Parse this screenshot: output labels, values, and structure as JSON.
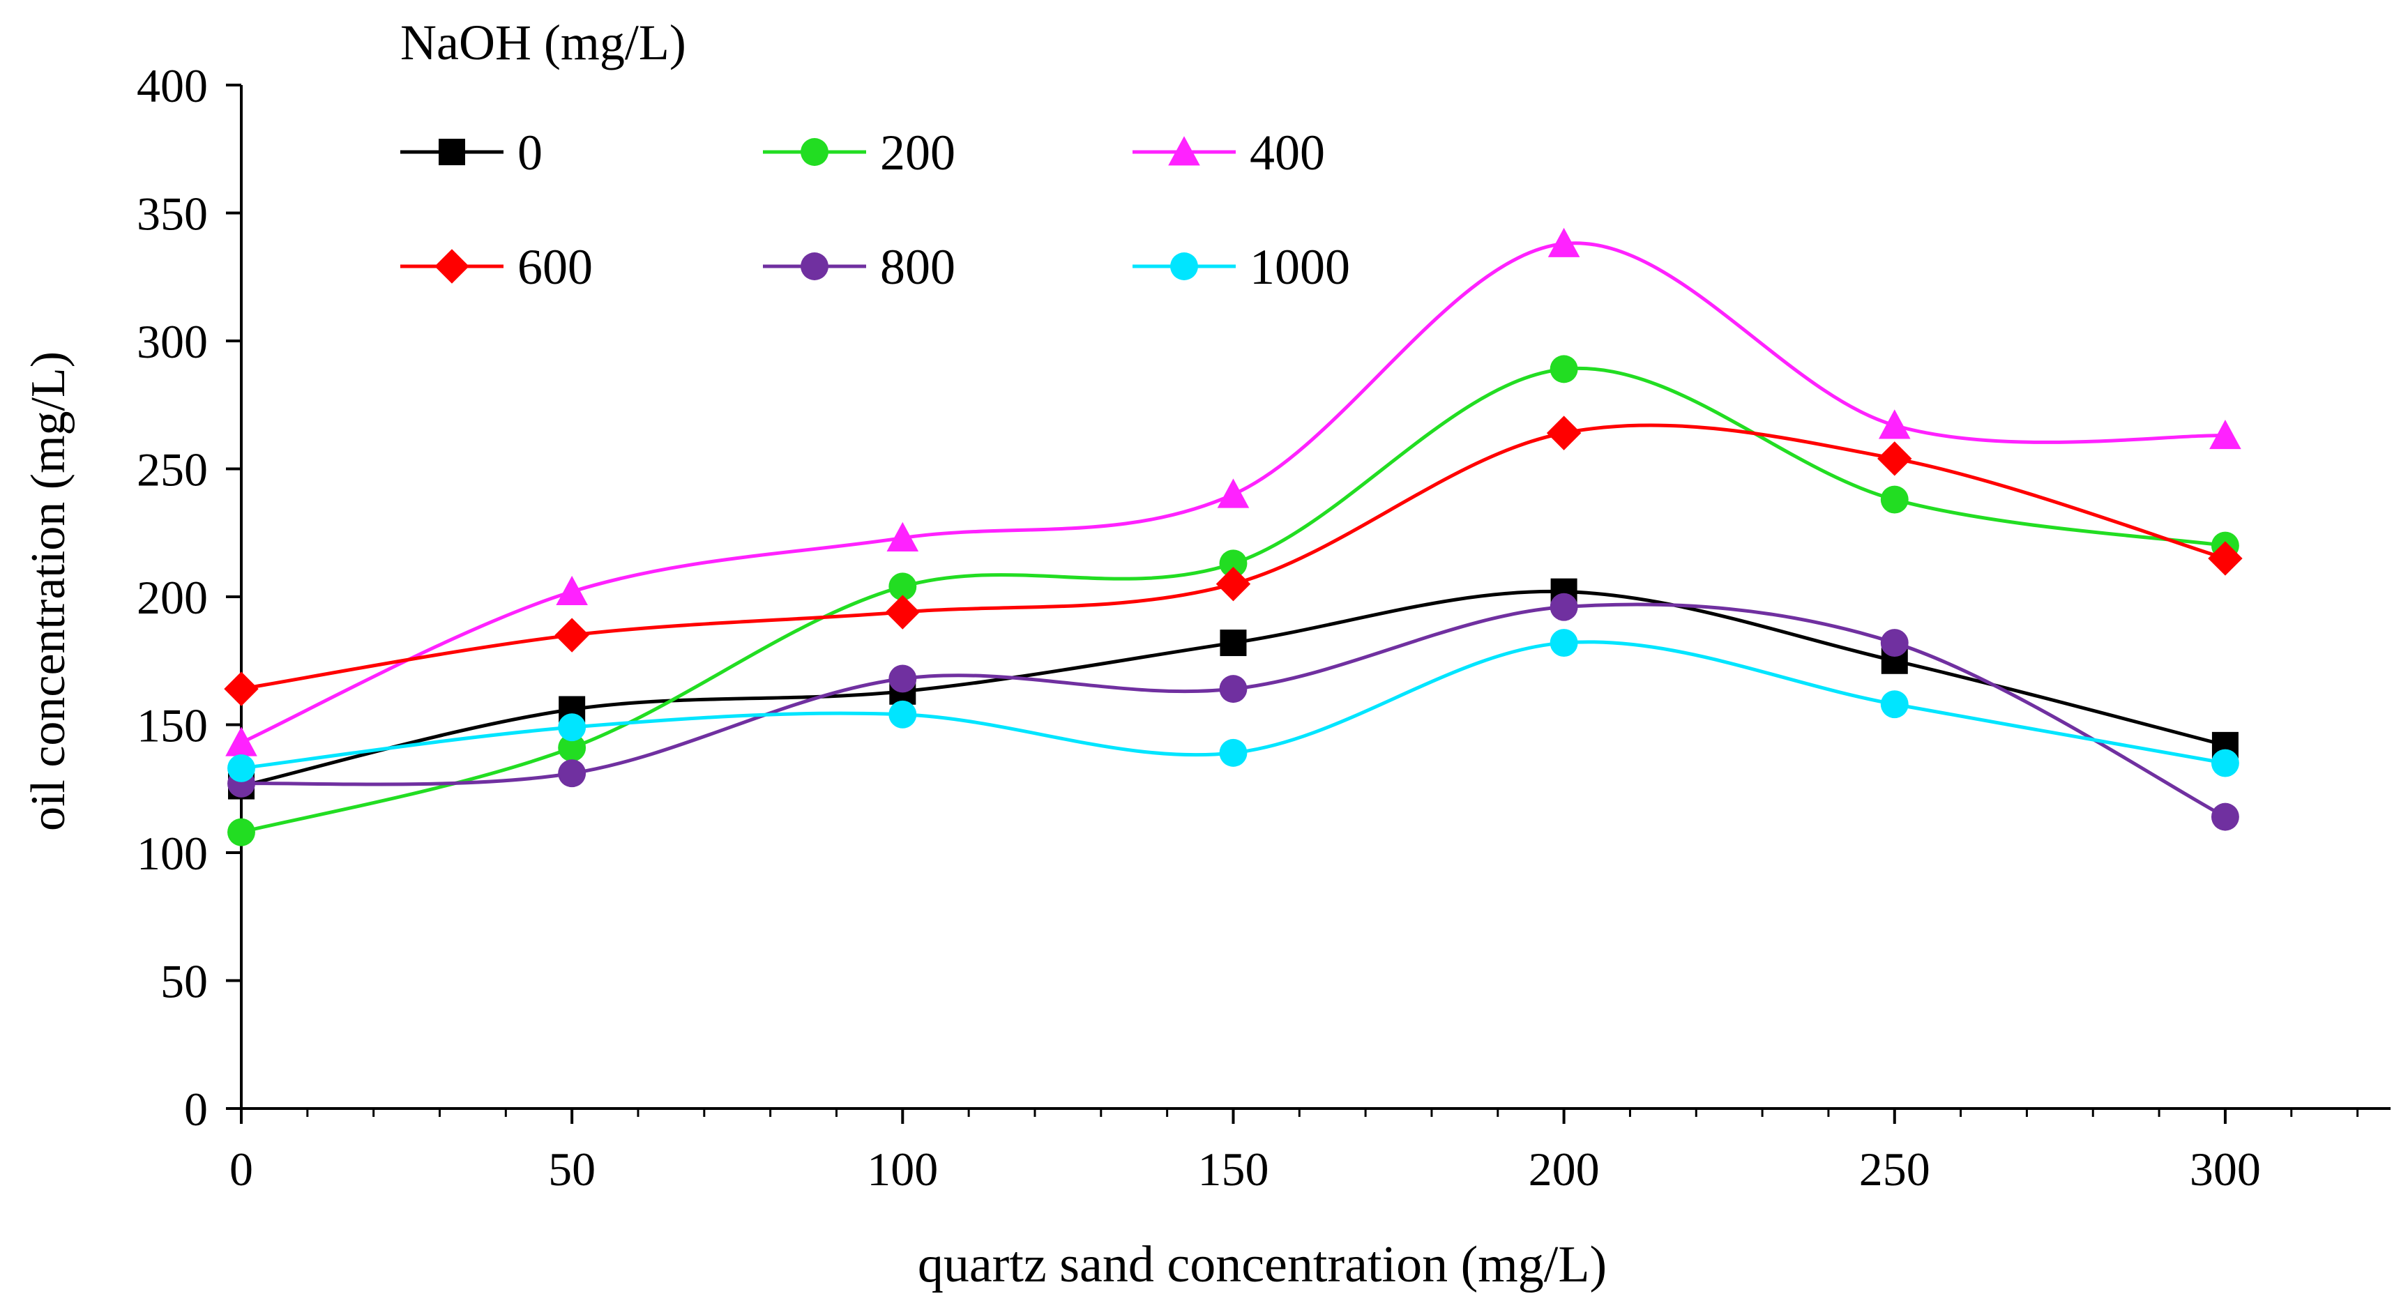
{
  "chart_data": {
    "type": "line",
    "title": "",
    "xlabel": "quartz sand concentration (mg/L)",
    "ylabel": "oil concentration (mg/L)",
    "xlim": [
      0,
      325
    ],
    "ylim": [
      0,
      400
    ],
    "x_ticks": [
      0,
      50,
      100,
      150,
      200,
      250,
      300
    ],
    "x_tick_labels": [
      "0",
      "50",
      "100",
      "150",
      "200",
      "250",
      "300"
    ],
    "y_ticks": [
      0,
      50,
      100,
      150,
      200,
      250,
      300,
      350,
      400
    ],
    "y_tick_labels": [
      "0",
      "50",
      "100",
      "150",
      "200",
      "250",
      "300",
      "350",
      "400"
    ],
    "grid": false,
    "legend_title": "NaOH (mg/L)",
    "legend_position": "top-left",
    "x": [
      0,
      50,
      100,
      150,
      200,
      250,
      300
    ],
    "series": [
      {
        "name": "0",
        "color": "#000000",
        "marker": "square",
        "values": [
          126,
          156,
          163,
          182,
          202,
          175,
          142
        ]
      },
      {
        "name": "200",
        "color": "#22dd22",
        "marker": "circle",
        "values": [
          108,
          141,
          204,
          213,
          289,
          238,
          220
        ]
      },
      {
        "name": "400",
        "color": "#ff22ff",
        "marker": "triangle",
        "values": [
          143,
          202,
          223,
          240,
          338,
          267,
          263
        ]
      },
      {
        "name": "600",
        "color": "#ff0000",
        "marker": "diamond",
        "values": [
          164,
          185,
          194,
          205,
          264,
          254,
          215
        ]
      },
      {
        "name": "800",
        "color": "#7030a0",
        "marker": "circle",
        "values": [
          127,
          131,
          168,
          164,
          196,
          182,
          114
        ]
      },
      {
        "name": "1000",
        "color": "#00e5ff",
        "marker": "circle",
        "values": [
          133,
          149,
          154,
          139,
          182,
          158,
          135
        ]
      }
    ]
  }
}
